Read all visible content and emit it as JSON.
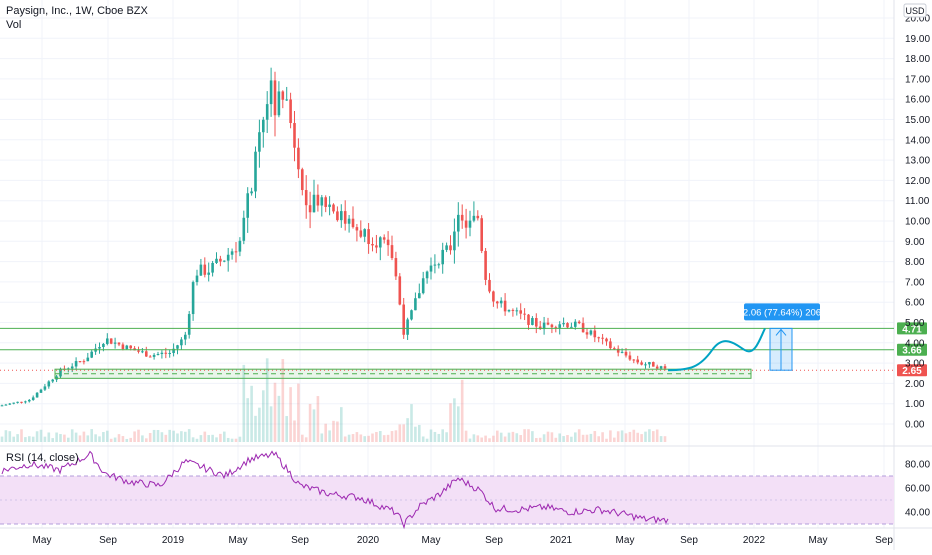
{
  "header": {
    "title": "Paysign, Inc., 1W, Cboe BZX",
    "volume_label": "Vol",
    "currency": "USD"
  },
  "rsi_label": "RSI (14, close)",
  "colors": {
    "up": "#26a69a",
    "down": "#ef5350",
    "hline": "#4caf50",
    "projection": "#2196f3",
    "rsi_line": "#9c27b0",
    "rsi_fill": "#f3e0f7"
  },
  "chart_data": [
    {
      "type": "candlestick",
      "title": "Paysign, Inc., 1W, Cboe BZX",
      "y_ticks": [
        "0.00",
        "1.00",
        "2.00",
        "3.00",
        "4.00",
        "5.00",
        "6.00",
        "7.00",
        "8.00",
        "9.00",
        "10.00",
        "11.00",
        "12.00",
        "13.00",
        "14.00",
        "15.00",
        "16.00",
        "17.00",
        "18.00",
        "19.00",
        "20.00"
      ],
      "x_ticks": [
        "May",
        "Sep",
        "2019",
        "May",
        "Sep",
        "2020",
        "May",
        "Sep",
        "2021",
        "May",
        "Sep",
        "2022",
        "May",
        "Sep"
      ],
      "ylim": [
        -0.4,
        20.2
      ],
      "horizontal_levels": [
        {
          "label": "4.71",
          "value": 4.71
        },
        {
          "label": "3.66",
          "value": 3.66
        }
      ],
      "support_zone": [
        2.25,
        2.7
      ],
      "last_price": "2.65",
      "projection": {
        "label": "2.06 (77.64%) 206",
        "from": 2.65,
        "to": 4.71
      },
      "volume_series_name": "Vol"
    },
    {
      "type": "line",
      "title": "RSI (14, close)",
      "y_ticks": [
        "40.00",
        "60.00",
        "80.00"
      ],
      "band": [
        30,
        70
      ],
      "ylim": [
        25,
        88
      ]
    }
  ]
}
